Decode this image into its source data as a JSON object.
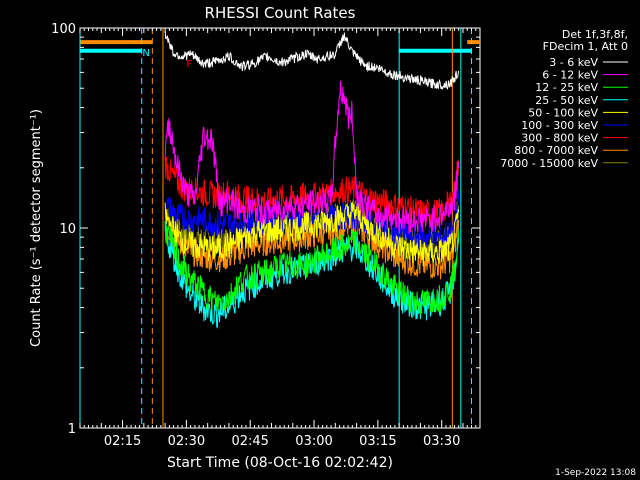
{
  "timestamp": "1-Sep-2022 13:08",
  "chart_data": {
    "type": "line",
    "title": "RHESSI Count Rates",
    "xlabel": "Start Time (08-Oct-16 02:02:42)",
    "ylabel": "Count Rate (s⁻¹ detector segment⁻¹)",
    "y_scale": "log",
    "ylim": [
      1,
      100
    ],
    "xlim": [
      "02:05:00",
      "03:39:00"
    ],
    "x_ticks": [
      "02:15",
      "02:30",
      "02:45",
      "03:00",
      "03:15",
      "03:30"
    ],
    "y_ticks": [
      "1",
      "10",
      "100"
    ],
    "legend_position": "top-right",
    "legend_header": [
      "Det 1f,3f,8f,",
      "FDecim 1, Att 0"
    ],
    "series": [
      {
        "name": "3 - 6 keV",
        "color": "#ffffff",
        "x": [
          "02:25",
          "02:27",
          "02:29",
          "02:31",
          "02:34",
          "02:37",
          "02:40",
          "02:43",
          "02:46",
          "02:49",
          "02:52",
          "02:55",
          "02:58",
          "03:01",
          "03:03",
          "03:05",
          "03:07",
          "03:09",
          "03:12",
          "03:15",
          "03:18",
          "03:21",
          "03:24",
          "03:27",
          "03:30",
          "03:32",
          "03:33",
          "03:34"
        ],
        "y": [
          95,
          75,
          72,
          74,
          66,
          68,
          72,
          64,
          67,
          72,
          67,
          70,
          74,
          70,
          72,
          74,
          92,
          75,
          65,
          63,
          59,
          57,
          55,
          53,
          52,
          53,
          56,
          61
        ]
      },
      {
        "name": "6 - 12 keV",
        "color": "#ff00ff",
        "x": [
          "02:25",
          "02:26",
          "02:28",
          "02:30",
          "02:32",
          "02:34",
          "02:36",
          "02:38",
          "02:40",
          "02:43",
          "02:46",
          "02:49",
          "02:52",
          "02:55",
          "02:58",
          "03:01",
          "03:04",
          "03:06",
          "03:07",
          "03:08",
          "03:09",
          "03:10",
          "03:12",
          "03:15",
          "03:18",
          "03:21",
          "03:24",
          "03:27",
          "03:30",
          "03:32",
          "03:33",
          "03:34"
        ],
        "y": [
          25,
          33,
          20,
          15,
          14,
          29,
          28,
          13,
          14,
          12,
          12.5,
          12,
          12.5,
          13,
          13,
          13.5,
          14,
          48,
          47,
          36,
          37,
          15,
          13,
          11.5,
          11.5,
          11,
          11,
          11,
          11.5,
          13,
          14,
          20
        ]
      },
      {
        "name": "12 - 25 keV",
        "color": "#00ff00",
        "x": [
          "02:25",
          "02:28",
          "02:31",
          "02:34",
          "02:37",
          "02:40",
          "02:43",
          "02:46",
          "02:49",
          "02:52",
          "02:55",
          "02:58",
          "03:01",
          "03:04",
          "03:07",
          "03:10",
          "03:13",
          "03:16",
          "03:19",
          "03:22",
          "03:25",
          "03:28",
          "03:30",
          "03:32",
          "03:33",
          "03:34"
        ],
        "y": [
          10,
          7,
          5.5,
          4.8,
          4.2,
          4.5,
          5.5,
          5.8,
          6,
          6.5,
          6.5,
          6.5,
          7,
          7.5,
          8,
          8.5,
          7,
          6,
          5,
          4.5,
          4.2,
          4.4,
          4.5,
          5,
          6,
          9
        ]
      },
      {
        "name": "25 - 50 keV",
        "color": "#00ffff",
        "x": [
          "02:25",
          "02:28",
          "02:31",
          "02:34",
          "02:37",
          "02:40",
          "02:43",
          "02:46",
          "02:49",
          "02:52",
          "02:55",
          "02:58",
          "03:01",
          "03:04",
          "03:07",
          "03:10",
          "03:13",
          "03:16",
          "03:19",
          "03:22",
          "03:25",
          "03:28",
          "03:30",
          "03:32",
          "03:33",
          "03:34"
        ],
        "y": [
          9.5,
          6.2,
          4.6,
          4,
          3.7,
          4,
          4.8,
          5.2,
          5.6,
          6,
          6.2,
          6.3,
          6.8,
          7.2,
          7.8,
          8,
          6.6,
          5.5,
          4.6,
          4.2,
          4,
          4.1,
          4.3,
          4.8,
          6,
          9
        ]
      },
      {
        "name": "50 - 100 keV",
        "color": "#ffff00",
        "x": [
          "02:25",
          "02:28",
          "02:31",
          "02:34",
          "02:37",
          "02:40",
          "02:43",
          "02:46",
          "02:49",
          "02:52",
          "02:55",
          "02:58",
          "03:01",
          "03:04",
          "03:07",
          "03:10",
          "03:13",
          "03:16",
          "03:19",
          "03:22",
          "03:25",
          "03:28",
          "03:30",
          "03:32",
          "03:33",
          "03:34"
        ],
        "y": [
          11.5,
          9,
          8.2,
          8,
          7.8,
          8.2,
          8.8,
          9.5,
          9.6,
          9.8,
          10,
          10.2,
          10.6,
          11,
          11.5,
          12,
          10,
          9,
          8.2,
          7.8,
          7.5,
          7.5,
          7.6,
          8,
          9,
          12
        ]
      },
      {
        "name": "100 - 300 keV",
        "color": "#0000ff",
        "x": [
          "02:25",
          "02:28",
          "02:31",
          "02:34",
          "02:37",
          "02:40",
          "02:43",
          "02:46",
          "02:49",
          "02:52",
          "02:55",
          "02:58",
          "03:01",
          "03:04",
          "03:07",
          "03:10",
          "03:13",
          "03:16",
          "03:19",
          "03:22",
          "03:25",
          "03:28",
          "03:30",
          "03:32",
          "03:33",
          "03:34"
        ],
        "y": [
          13,
          11.5,
          11,
          11,
          10.5,
          10.5,
          10.8,
          10.8,
          10.5,
          10.8,
          11,
          11,
          11,
          11.2,
          11.5,
          11.5,
          10.5,
          10,
          9.5,
          9.2,
          9,
          9,
          9,
          9.5,
          10,
          14
        ]
      },
      {
        "name": "300 - 800 keV",
        "color": "#ff0000",
        "x": [
          "02:25",
          "02:27",
          "02:29",
          "02:31",
          "02:34",
          "02:37",
          "02:40",
          "02:43",
          "02:46",
          "02:49",
          "02:52",
          "02:55",
          "02:58",
          "03:01",
          "03:04",
          "03:07",
          "03:10",
          "03:13",
          "03:16",
          "03:19",
          "03:22",
          "03:25",
          "03:28",
          "03:30",
          "03:32",
          "03:33",
          "03:34"
        ],
        "y": [
          21,
          18,
          16,
          15.5,
          15,
          14.5,
          15,
          14,
          14,
          13.5,
          14,
          14,
          14.5,
          14.5,
          15,
          15.5,
          15.5,
          14,
          13.5,
          13,
          12.5,
          12,
          12,
          12,
          13.5,
          15,
          22
        ]
      },
      {
        "name": "800 - 7000 keV",
        "color": "#ff8c00",
        "x": [
          "02:25",
          "02:28",
          "02:31",
          "02:34",
          "02:37",
          "02:40",
          "02:43",
          "02:46",
          "02:49",
          "02:52",
          "02:55",
          "02:58",
          "03:01",
          "03:04",
          "03:07",
          "03:10",
          "03:13",
          "03:16",
          "03:19",
          "03:22",
          "03:25",
          "03:28",
          "03:30",
          "03:32",
          "03:33",
          "03:34"
        ],
        "y": [
          10.5,
          8.5,
          7.6,
          7.2,
          7,
          7.2,
          7.8,
          8.2,
          8.5,
          8.6,
          8.8,
          9,
          9.3,
          9.6,
          10,
          10.3,
          9,
          8,
          7.2,
          6.8,
          6.5,
          6.5,
          6.5,
          7,
          8,
          11
        ]
      },
      {
        "name": "7000 - 15000 keV",
        "color": "#808000",
        "x": [
          "02:25",
          "02:28",
          "02:31",
          "02:34",
          "02:37",
          "02:40",
          "02:43",
          "02:46",
          "02:49",
          "02:52",
          "02:55",
          "02:58",
          "03:01",
          "03:04",
          "03:07",
          "03:10",
          "03:13",
          "03:16",
          "03:19",
          "03:22",
          "03:25",
          "03:28",
          "03:30",
          "03:32",
          "03:33",
          "03:34"
        ],
        "y": [
          12,
          9.5,
          9,
          8.8,
          8.6,
          8.8,
          9.4,
          9.8,
          10,
          10.2,
          10.3,
          10.5,
          10.8,
          11.2,
          11.6,
          12,
          10.5,
          9.6,
          9,
          8.6,
          8.3,
          8.3,
          8.4,
          8.8,
          9.6,
          13
        ]
      }
    ],
    "flags": [
      {
        "name": "orange-top",
        "color": "#ff8c00",
        "y": 85,
        "segments": [
          [
            "02:05:00",
            "02:22:00"
          ],
          [
            "03:36:00",
            "03:39:00"
          ]
        ]
      },
      {
        "name": "cyan-top",
        "color": "#00ffff",
        "y": 77,
        "segments": [
          [
            "02:05:00",
            "02:19:30"
          ],
          [
            "03:20:00",
            "03:37:00"
          ]
        ]
      }
    ],
    "flag_labels": [
      {
        "text": "N",
        "color": "#00ffff",
        "x": "02:19:40",
        "y": 76
      },
      {
        "text": "F",
        "color": "#ff0000",
        "x": "02:30:00",
        "y": 67
      }
    ],
    "vlines": [
      {
        "x": "02:05:00",
        "color": "#00ffff",
        "style": "solid"
      },
      {
        "x": "02:19:30",
        "color": "#00ffff",
        "style": "dashed"
      },
      {
        "x": "02:22:00",
        "color": "#ff8c00",
        "style": "dashed"
      },
      {
        "x": "02:24:30",
        "color": "#ff8c00",
        "style": "solid"
      },
      {
        "x": "03:20:00",
        "color": "#00ffff",
        "style": "solid"
      },
      {
        "x": "03:32:30",
        "color": "#ff8c00",
        "style": "solid"
      },
      {
        "x": "03:34:30",
        "color": "#00ffff",
        "style": "solid"
      },
      {
        "x": "03:37:00",
        "color": "#00ffff",
        "style": "dashed"
      }
    ]
  }
}
